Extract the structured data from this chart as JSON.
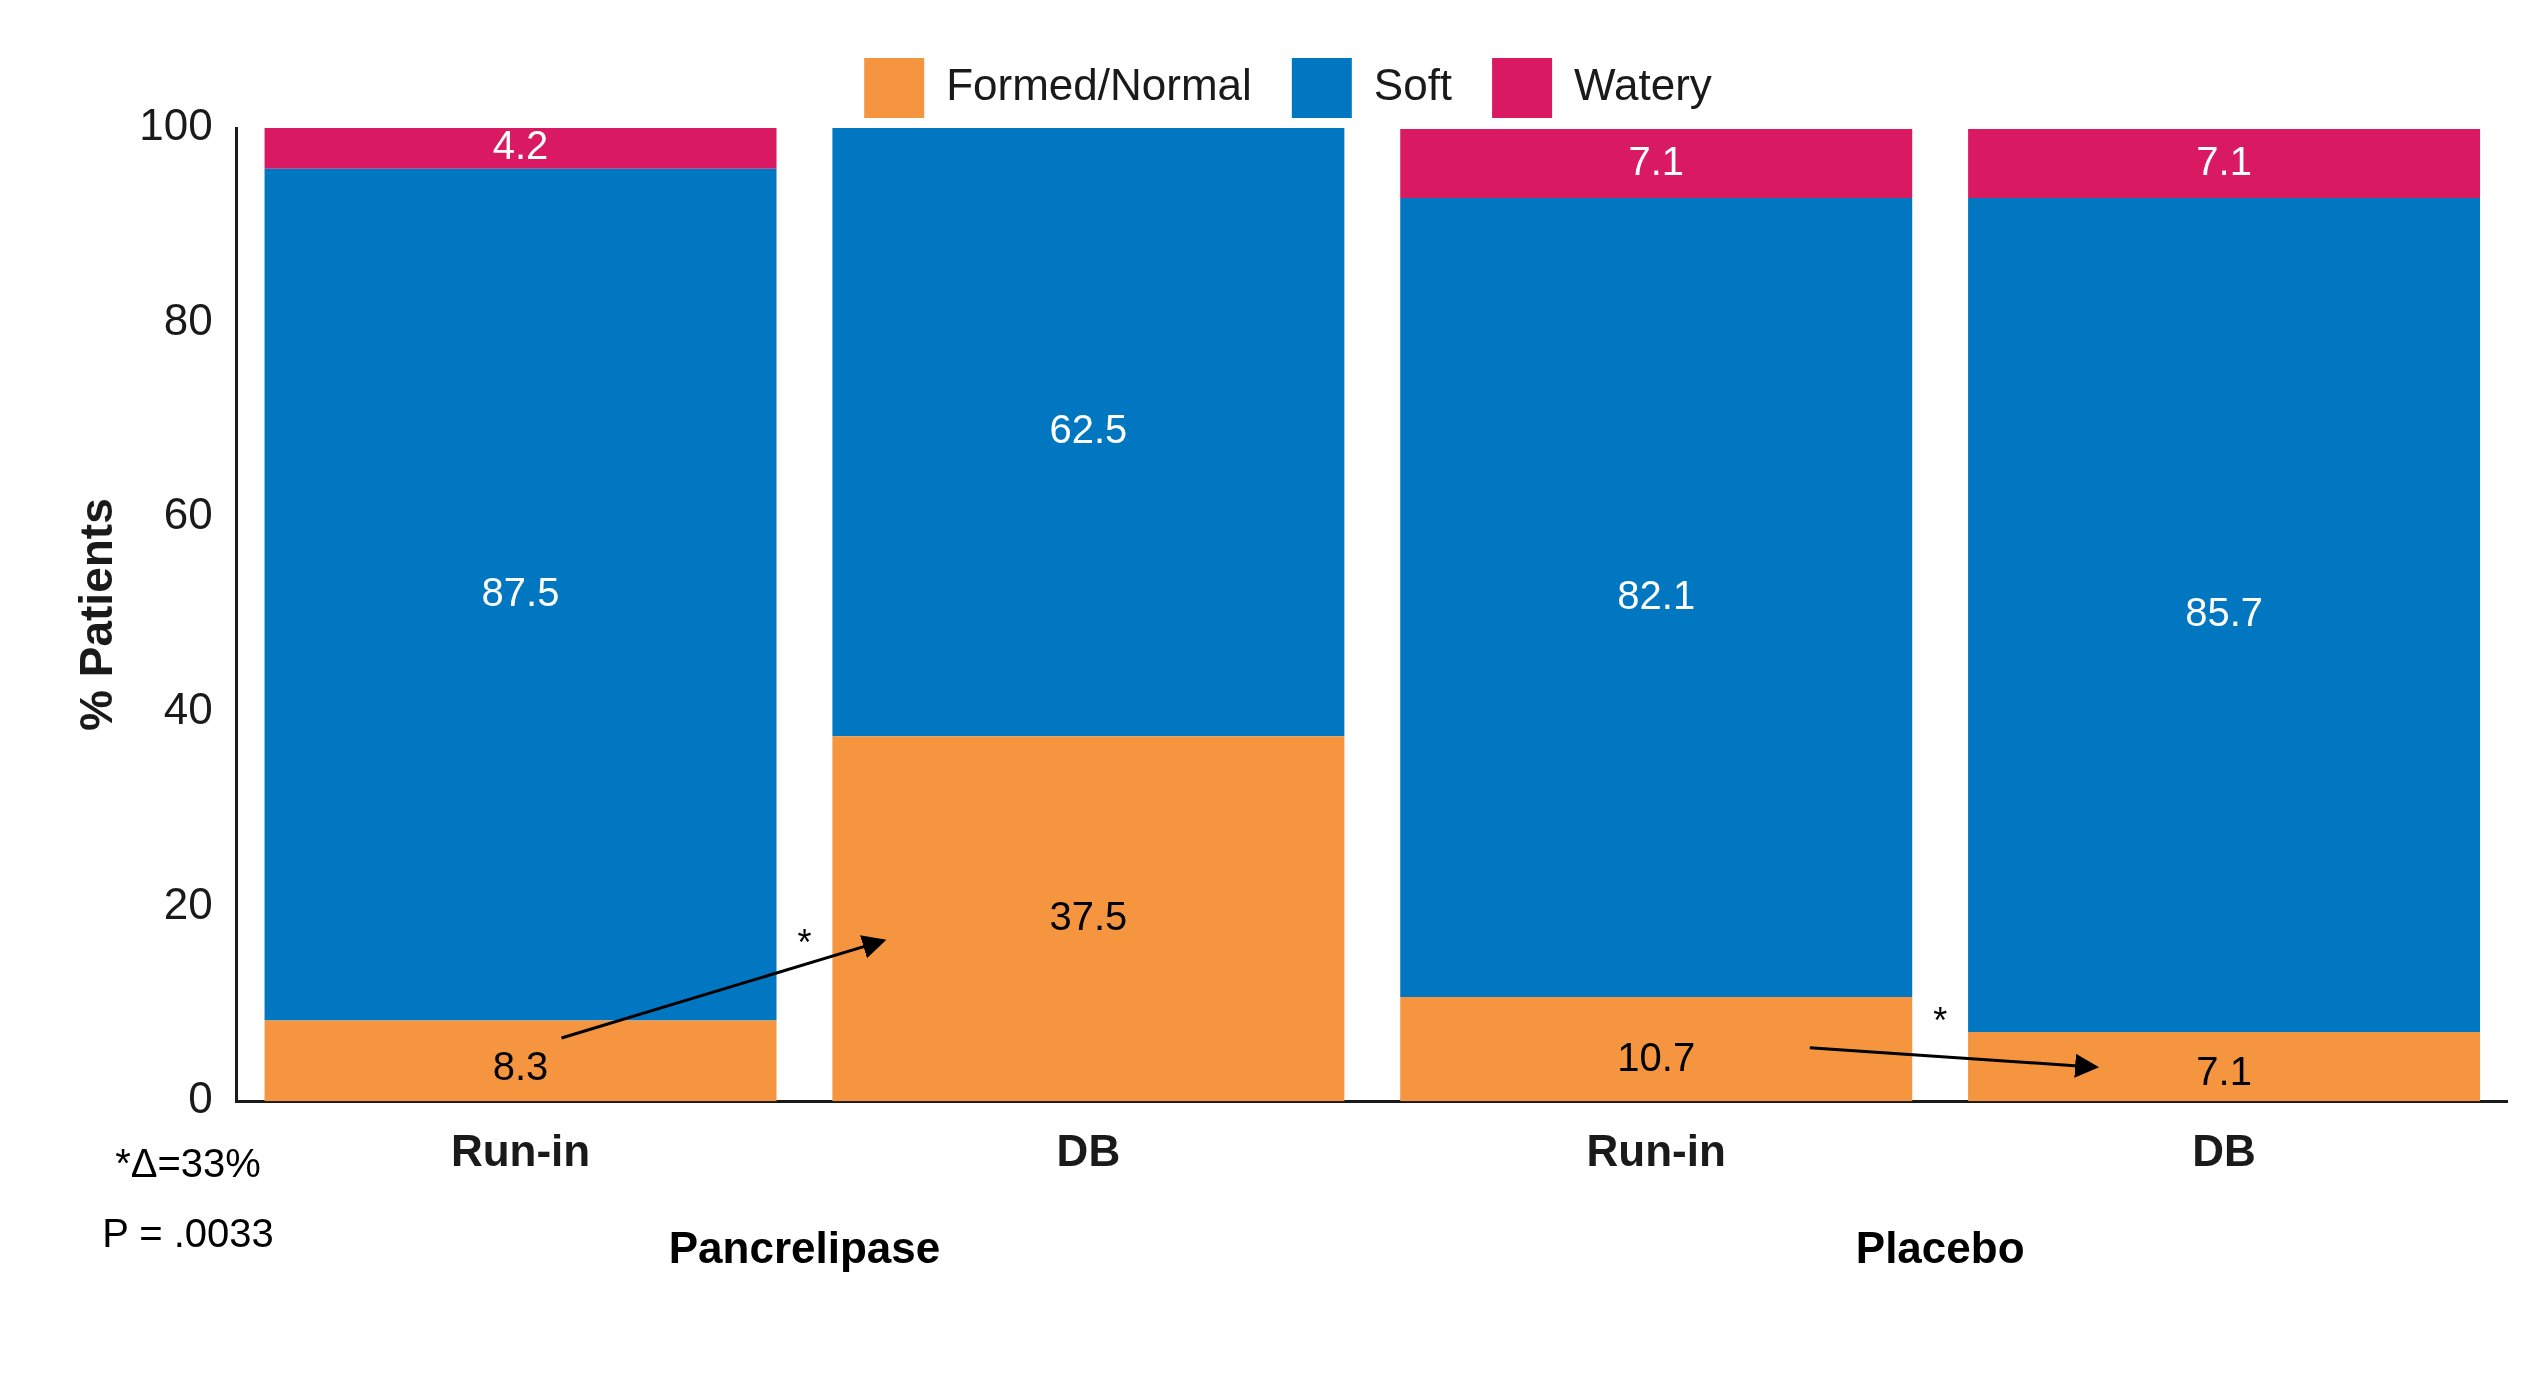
{
  "chart_data": {
    "type": "bar",
    "stacked": true,
    "ylabel": "% Patients",
    "categories": [
      "Run-in",
      "DB",
      "Run-in",
      "DB"
    ],
    "series": [
      {
        "name": "Formed/Normal",
        "color": "#f5953f",
        "values": [
          8.3,
          37.5,
          10.7,
          7.1
        ],
        "value_labels": [
          "8.3",
          "37.5",
          "10.7",
          "7.1"
        ]
      },
      {
        "name": "Soft",
        "color": "#0077c0",
        "values": [
          87.5,
          62.5,
          82.1,
          85.7
        ],
        "value_labels": [
          "87.5",
          "62.5",
          "82.1",
          "85.7"
        ]
      },
      {
        "name": "Watery",
        "color": "#d91a63",
        "values": [
          4.2,
          0,
          7.1,
          7.1
        ],
        "value_labels": [
          "4.2",
          null,
          "7.1",
          "7.1"
        ]
      }
    ],
    "ylim": [
      0,
      100
    ],
    "yticks": [
      0,
      20,
      40,
      60,
      80,
      100
    ],
    "grid": false,
    "legend": "top",
    "annotations": [
      "Pancrelipase",
      "Placebo",
      "*",
      "*",
      "*Δ=33%",
      "P = .0033"
    ]
  }
}
